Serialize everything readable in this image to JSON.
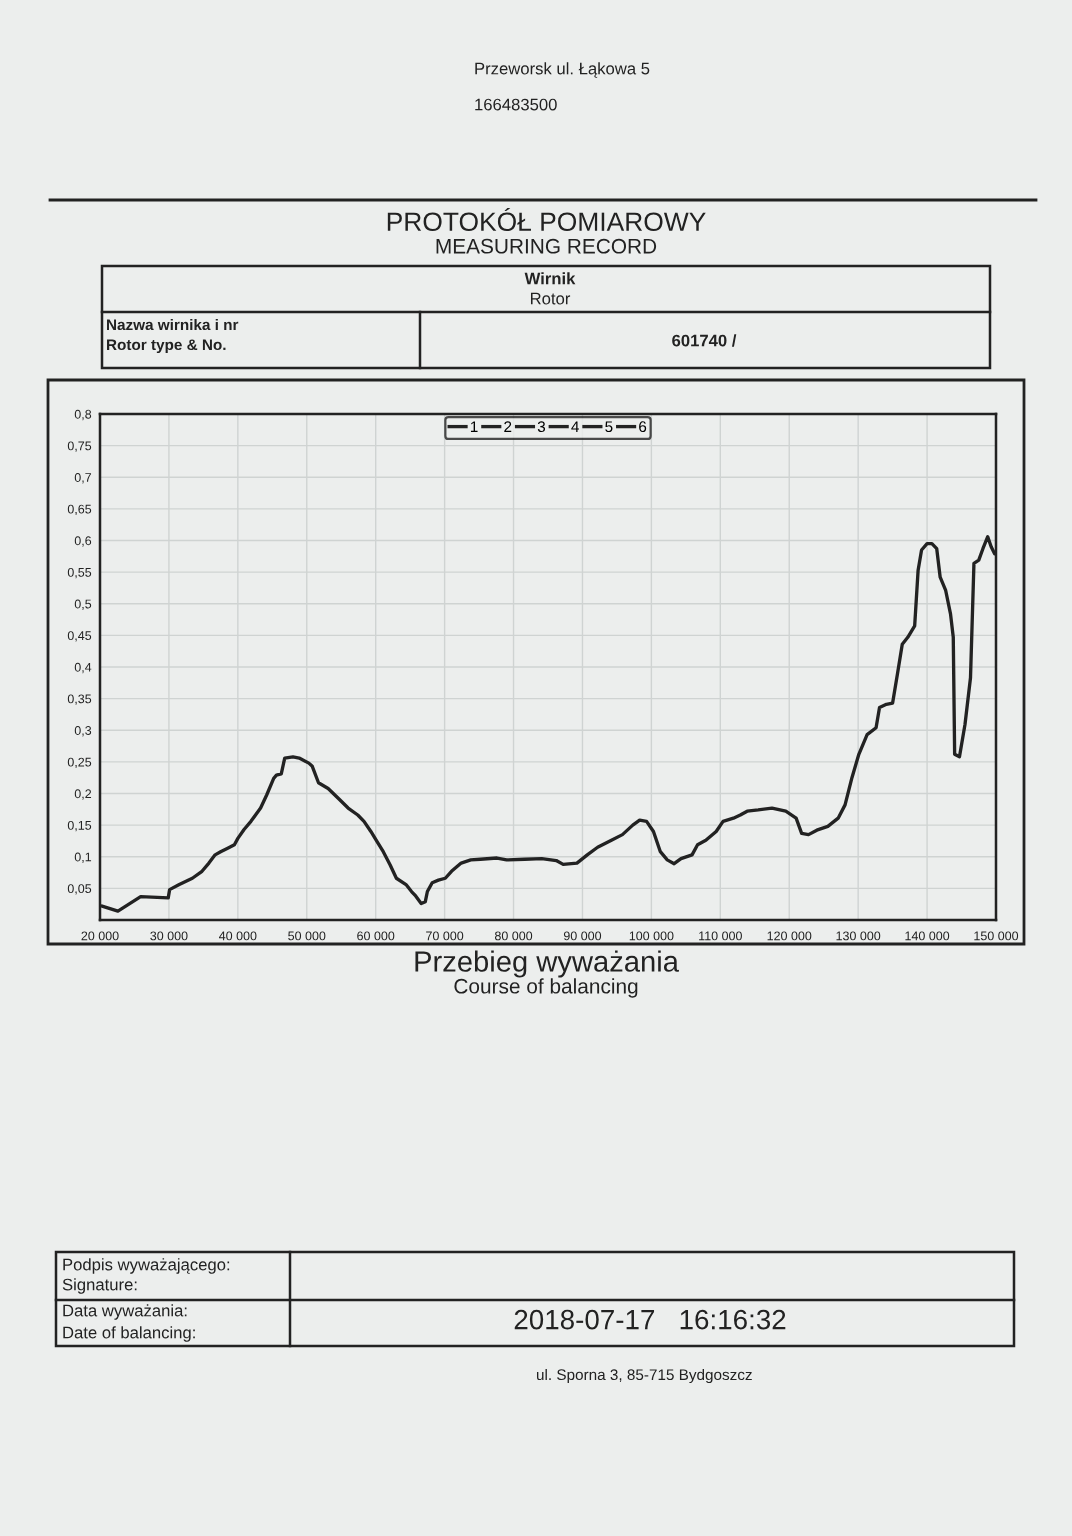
{
  "chart_data": {
    "type": "line",
    "title": "Przebieg wyważania",
    "subtitle": "Course of balancing",
    "xlim": [
      20000,
      150000
    ],
    "xticks": [
      {
        "value": 20000,
        "label": "20 000"
      },
      {
        "value": 30000,
        "label": "30 000"
      },
      {
        "value": 40000,
        "label": "40 000"
      },
      {
        "value": 50000,
        "label": "50 000"
      },
      {
        "value": 60000,
        "label": "60 000"
      },
      {
        "value": 70000,
        "label": "70 000"
      },
      {
        "value": 80000,
        "label": "80 000"
      },
      {
        "value": 90000,
        "label": "90 000"
      },
      {
        "value": 100000,
        "label": "100 000"
      },
      {
        "value": 110000,
        "label": "110 000"
      },
      {
        "value": 120000,
        "label": "120 000"
      },
      {
        "value": 130000,
        "label": "130 000"
      },
      {
        "value": 140000,
        "label": "140 000"
      },
      {
        "value": 150000,
        "label": "150 000"
      }
    ],
    "ylim": [
      0,
      0.8
    ],
    "yticks": [
      {
        "value": 0.05,
        "label": "0,05"
      },
      {
        "value": 0.1,
        "label": "0,1"
      },
      {
        "value": 0.15,
        "label": "0,15"
      },
      {
        "value": 0.2,
        "label": "0,2"
      },
      {
        "value": 0.25,
        "label": "0,25"
      },
      {
        "value": 0.3,
        "label": "0,3"
      },
      {
        "value": 0.35,
        "label": "0,35"
      },
      {
        "value": 0.4,
        "label": "0,4"
      },
      {
        "value": 0.45,
        "label": "0,45"
      },
      {
        "value": 0.5,
        "label": "0,5"
      },
      {
        "value": 0.55,
        "label": "0,55"
      },
      {
        "value": 0.6,
        "label": "0,6"
      },
      {
        "value": 0.65,
        "label": "0,65"
      },
      {
        "value": 0.7,
        "label": "0,7"
      },
      {
        "value": 0.75,
        "label": "0,75"
      },
      {
        "value": 0.8,
        "label": "0,8"
      }
    ],
    "grid": true,
    "legend": "top",
    "series": [
      {
        "name": "1",
        "color": "#222222",
        "x": [
          20300,
          22600,
          25900,
          29900,
          30100,
          31500,
          33400,
          34800,
          35800,
          36700,
          37500,
          38600,
          39500,
          40000,
          40900,
          41900,
          43300,
          44200,
          45200,
          45600,
          46300,
          46800,
          48000,
          48900,
          50300,
          50800,
          51700,
          53100,
          54600,
          56000,
          57400,
          58300,
          59300,
          60200,
          61100,
          62100,
          63000,
          64400,
          65200,
          65800,
          66600,
          67200,
          67500,
          68200,
          69100,
          70100,
          71000,
          72400,
          73800,
          75200,
          77600,
          79000,
          81600,
          84100,
          86200,
          87200,
          89200,
          90700,
          92200,
          94200,
          95800,
          97300,
          98300,
          99300,
          100300,
          101300,
          102300,
          103300,
          104300,
          105900,
          106700,
          107900,
          109400,
          110400,
          111900,
          112900,
          113900,
          115500,
          117500,
          119500,
          121000,
          121800,
          122800,
          124000,
          125600,
          127100,
          128100,
          129100,
          130100,
          131300,
          132600,
          133100,
          134100,
          135000,
          135700,
          136400,
          137200,
          138200,
          138700,
          139200,
          140000,
          140700,
          141400,
          141900,
          142700,
          143400,
          143800,
          144000,
          144700,
          145500,
          146300,
          146800,
          147500,
          148100,
          148800,
          149300,
          149800
        ],
        "values": [
          0.022,
          0.014,
          0.037,
          0.035,
          0.048,
          0.056,
          0.066,
          0.077,
          0.09,
          0.103,
          0.108,
          0.114,
          0.119,
          0.129,
          0.143,
          0.156,
          0.177,
          0.198,
          0.224,
          0.229,
          0.231,
          0.256,
          0.258,
          0.256,
          0.248,
          0.243,
          0.217,
          0.208,
          0.192,
          0.177,
          0.166,
          0.156,
          0.14,
          0.124,
          0.108,
          0.087,
          0.066,
          0.056,
          0.045,
          0.038,
          0.026,
          0.029,
          0.045,
          0.059,
          0.063,
          0.066,
          0.077,
          0.09,
          0.095,
          0.096,
          0.098,
          0.095,
          0.096,
          0.097,
          0.094,
          0.088,
          0.09,
          0.103,
          0.115,
          0.126,
          0.135,
          0.15,
          0.158,
          0.156,
          0.14,
          0.108,
          0.095,
          0.089,
          0.097,
          0.103,
          0.119,
          0.126,
          0.14,
          0.156,
          0.161,
          0.166,
          0.172,
          0.174,
          0.177,
          0.172,
          0.161,
          0.137,
          0.135,
          0.142,
          0.148,
          0.161,
          0.182,
          0.225,
          0.262,
          0.293,
          0.304,
          0.336,
          0.341,
          0.343,
          0.389,
          0.436,
          0.447,
          0.465,
          0.553,
          0.585,
          0.595,
          0.595,
          0.587,
          0.542,
          0.521,
          0.484,
          0.447,
          0.262,
          0.258,
          0.309,
          0.383,
          0.564,
          0.569,
          0.587,
          0.606,
          0.59,
          0.579
        ]
      },
      {
        "name": "2",
        "color": "#222222"
      },
      {
        "name": "3",
        "color": "#222222"
      },
      {
        "name": "4",
        "color": "#222222"
      },
      {
        "name": "5",
        "color": "#222222"
      },
      {
        "name": "6",
        "color": "#222222"
      }
    ],
    "annotations": [
      "Przeworsk ul. Łąkowa 5",
      "166483500",
      "PROTOKÓŁ POMIAROWY",
      "MEASURING RECORD",
      "Wirnik",
      "Rotor",
      "Nazwa wirnika i nr",
      "Rotor type & No.",
      "601740 /",
      "Podpis wyważającego:",
      "Signature:",
      "Data wyważania:",
      "Date of balancing:",
      "2018-07-17   16:16:32",
      "ul. Sporna 3, 85-715 Bydgoszcz"
    ]
  }
}
